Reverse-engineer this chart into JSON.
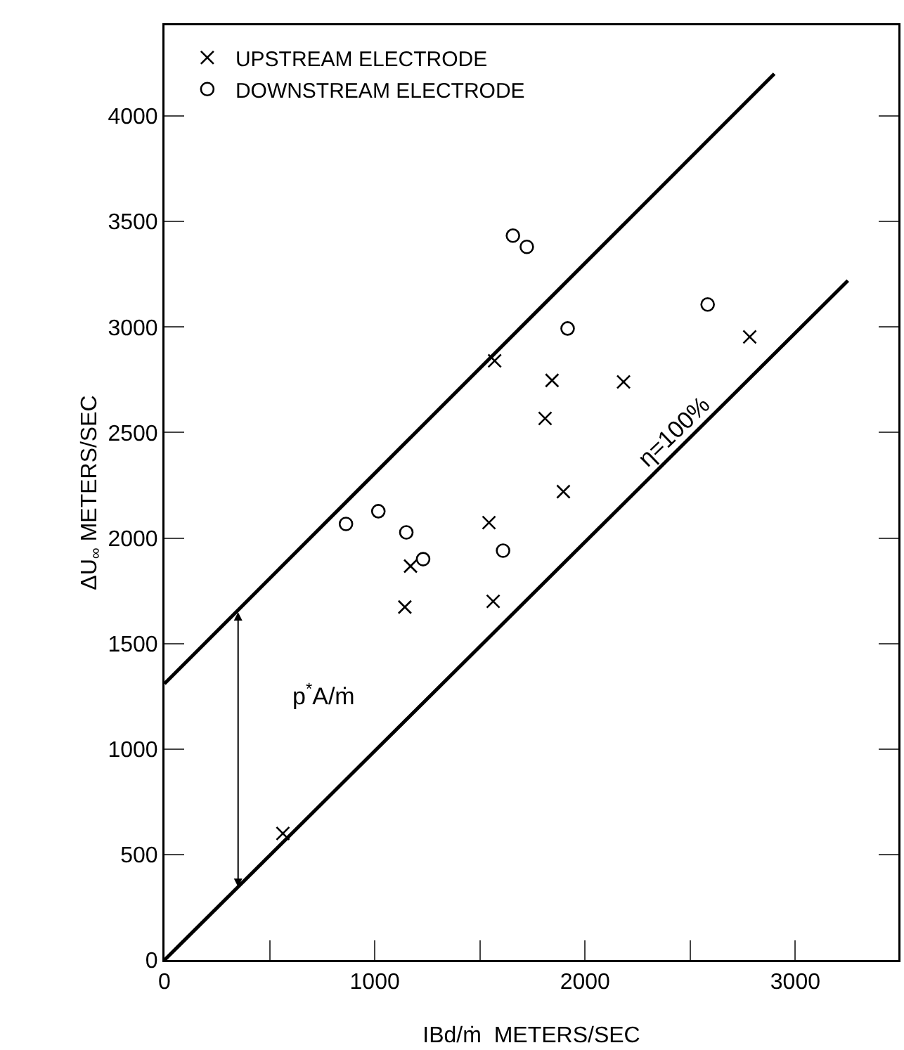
{
  "chart_data": {
    "type": "scatter",
    "xlabel": "IBd/ṁ  METERS/SEC",
    "ylabel": "ΔU$_{∞}$ METERS/SEC",
    "xlim": [
      0,
      3490
    ],
    "ylim": [
      0,
      4430
    ],
    "xticks": [
      0,
      {
        "value": 500,
        "label": null
      },
      1000,
      {
        "value": 1500,
        "label": null
      },
      2000,
      {
        "value": 2500,
        "label": null
      },
      3000
    ],
    "yticks": [
      0,
      500,
      1000,
      1500,
      2000,
      2500,
      3000,
      3500,
      4000
    ],
    "grid": false,
    "legend": "top left",
    "series": [
      {
        "name": "UPSTREAM ELECTRODE",
        "color": "#000000",
        "marker": "cross",
        "x": [
          563,
          1570,
          1843,
          2183,
          1810,
          1897,
          1543,
          1563,
          2783,
          1170,
          1143
        ],
        "values": [
          600,
          2840,
          2747,
          2740,
          2567,
          2220,
          2073,
          1700,
          2953,
          1867,
          1673
        ]
      },
      {
        "name": "DOWNSTREAM ELECTRODE",
        "color": "#000000",
        "marker": "circle",
        "x": [
          863,
          1017,
          1150,
          1230,
          1610,
          1657,
          1723,
          1917,
          2583
        ],
        "values": [
          2067,
          2127,
          2027,
          1900,
          1940,
          3433,
          3380,
          2993,
          3107
        ]
      },
      {
        "type": "line",
        "color": "#000000",
        "marker": "none",
        "line_style": "solid",
        "x": [
          0,
          2900
        ],
        "values": [
          1310,
          4200
        ]
      },
      {
        "type": "line",
        "color": "#000000",
        "marker": "none",
        "line_style": "solid",
        "x": [
          0,
          3250
        ],
        "values": [
          0,
          3220
        ]
      }
    ],
    "annotations": [
      "η=100%",
      "p$^{*}$A/ṁ"
    ]
  }
}
